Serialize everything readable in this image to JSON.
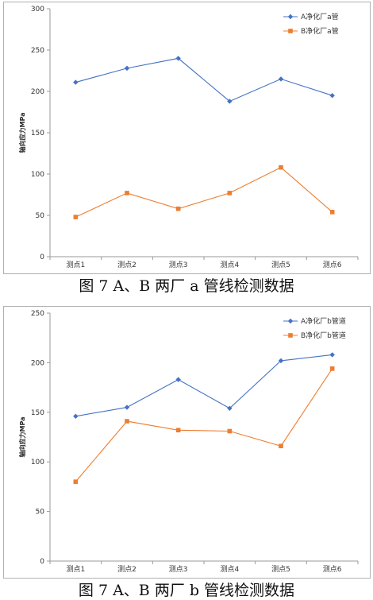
{
  "chart_data": [
    {
      "type": "line",
      "categories": [
        "测点1",
        "测点2",
        "测点3",
        "测点4",
        "测点5",
        "测点6"
      ],
      "series": [
        {
          "name": "A净化厂a管",
          "values": [
            211,
            228,
            240,
            188,
            215,
            195
          ],
          "color": "#4472C4",
          "marker": "diamond"
        },
        {
          "name": "B净化厂a管",
          "values": [
            48,
            77,
            58,
            77,
            108,
            54
          ],
          "color": "#ED7D31",
          "marker": "square"
        }
      ],
      "ylabel": "轴向应力MPa",
      "ylim": [
        0,
        300
      ],
      "yticks": [
        0,
        50,
        100,
        150,
        200,
        250,
        300
      ],
      "grid": false,
      "legend": "top-right",
      "caption": "图 7 A、B 两厂 a 管线检测数据"
    },
    {
      "type": "line",
      "categories": [
        "测点1",
        "测点2",
        "测点3",
        "测点4",
        "测点5",
        "测点6"
      ],
      "series": [
        {
          "name": "A净化厂b管道",
          "values": [
            146,
            155,
            183,
            154,
            202,
            208
          ],
          "color": "#4472C4",
          "marker": "diamond"
        },
        {
          "name": "B净化厂b管道",
          "values": [
            80,
            141,
            132,
            131,
            116,
            194
          ],
          "color": "#ED7D31",
          "marker": "square"
        }
      ],
      "ylabel": "轴向应力MPa",
      "ylim": [
        0,
        250
      ],
      "yticks": [
        0,
        50,
        100,
        150,
        200,
        250
      ],
      "grid": false,
      "legend": "top-right",
      "caption": "图 7 A、B 两厂 b 管线检测数据"
    }
  ]
}
